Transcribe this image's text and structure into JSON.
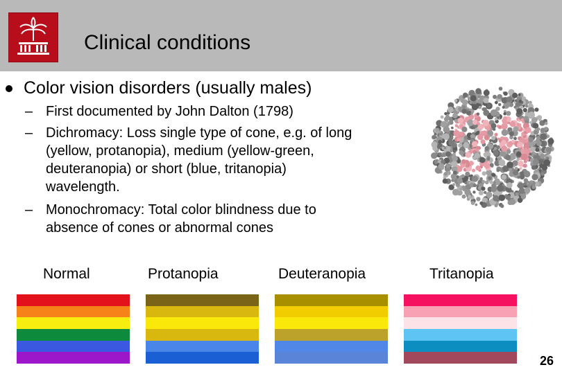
{
  "slide": {
    "title": "Clinical conditions",
    "page_number": "26",
    "bullet": "Color vision disorders (usually males)",
    "sub_bullets": [
      {
        "dash": "–",
        "lines": [
          "First documented by John Dalton (1798)"
        ]
      },
      {
        "dash": "–",
        "lines": [
          "Dichromacy: Loss single type of cone, e.g. of long",
          "(yellow, protanopia), medium (yellow-green,",
          "deuteranopia) or short (blue, tritanopia)",
          "wavelength."
        ]
      },
      {
        "dash": "–",
        "lines": [
          "Monochromacy: Total color blindness due to",
          "absence of cones or abnormal cones"
        ]
      }
    ]
  },
  "spectra": [
    {
      "label": "Normal",
      "colors": [
        "#e3111b",
        "#f7821a",
        "#f7ee0f",
        "#0d8a3c",
        "#3a58e0",
        "#9b17c9"
      ]
    },
    {
      "label": "Protanopia",
      "colors": [
        "#7a6417",
        "#d8b80e",
        "#fbe80b",
        "#d8b80e",
        "#4a86ea",
        "#1a5fd4"
      ]
    },
    {
      "label": "Deuteranopia",
      "colors": [
        "#a88f00",
        "#f1cd00",
        "#fbe80b",
        "#bca22a",
        "#5188e8",
        "#5a84d8"
      ]
    },
    {
      "label": "Tritanopia",
      "colors": [
        "#f5115f",
        "#f8a0b4",
        "#fde2e8",
        "#5ec4f4",
        "#0c8fc0",
        "#a2485c"
      ]
    }
  ],
  "colors": {
    "header_bg": "#b9b9b9",
    "logo_bg": "#b80d1b"
  },
  "icons": {
    "logo": "palmetto-tree-logo",
    "plate": "ishihara-color-plate"
  }
}
